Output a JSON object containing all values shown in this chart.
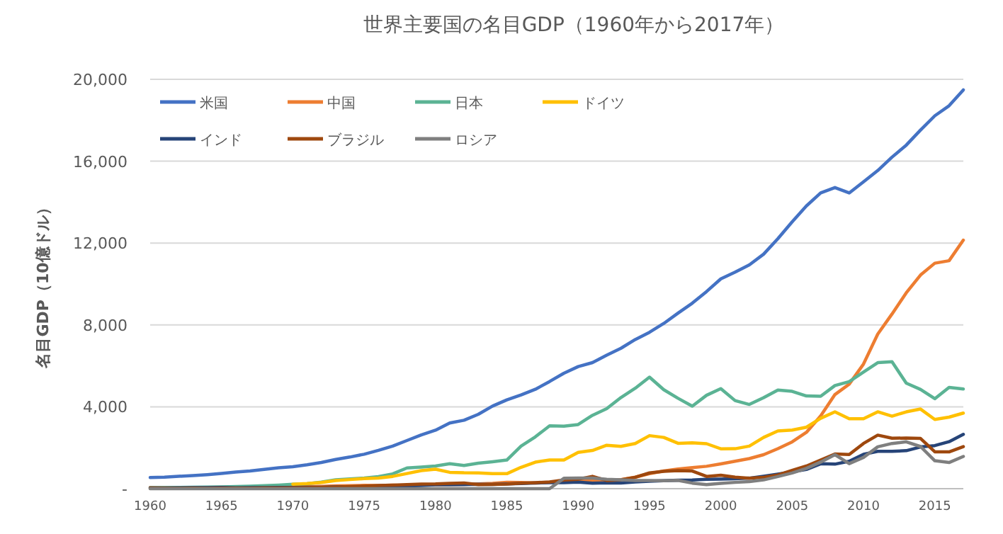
{
  "chart_data": {
    "type": "line",
    "title": "世界主要国の名目GDP（1960年から2017年）",
    "ylabel": "名目GDP（10億ドル）",
    "x": [
      1960,
      1961,
      1962,
      1963,
      1964,
      1965,
      1966,
      1967,
      1968,
      1969,
      1970,
      1971,
      1972,
      1973,
      1974,
      1975,
      1976,
      1977,
      1978,
      1979,
      1980,
      1981,
      1982,
      1983,
      1984,
      1985,
      1986,
      1987,
      1988,
      1989,
      1990,
      1991,
      1992,
      1993,
      1994,
      1995,
      1996,
      1997,
      1998,
      1999,
      2000,
      2001,
      2002,
      2003,
      2004,
      2005,
      2006,
      2007,
      2008,
      2009,
      2010,
      2011,
      2012,
      2013,
      2014,
      2015,
      2016,
      2017
    ],
    "xlim": [
      1960,
      2017
    ],
    "xticks": [
      1960,
      1965,
      1970,
      1975,
      1980,
      1985,
      1990,
      1995,
      2000,
      2005,
      2010,
      2015
    ],
    "ylim": [
      0,
      20000
    ],
    "yticks": [
      {
        "value": 0,
        "label": "-"
      },
      {
        "value": 4000,
        "label": "4,000"
      },
      {
        "value": 8000,
        "label": "8,000"
      },
      {
        "value": 12000,
        "label": "12,000"
      },
      {
        "value": 16000,
        "label": "16,000"
      },
      {
        "value": 20000,
        "label": "20,000"
      }
    ],
    "grid": "y",
    "legend": "top left",
    "series": [
      {
        "name": "米国",
        "color": "#4472c4",
        "values": [
          543,
          563,
          605,
          638,
          686,
          744,
          815,
          862,
          943,
          1020,
          1073,
          1165,
          1280,
          1425,
          1545,
          1684,
          1873,
          2082,
          2352,
          2627,
          2857,
          3207,
          3343,
          3634,
          4037,
          4339,
          4580,
          4855,
          5236,
          5642,
          5963,
          6158,
          6520,
          6859,
          7287,
          7640,
          8073,
          8578,
          9063,
          9631,
          10252,
          10582,
          10936,
          11458,
          12214,
          13037,
          13815,
          14452,
          14713,
          14449,
          14992,
          15543,
          16197,
          16785,
          17522,
          18219,
          18707,
          19485
        ]
      },
      {
        "name": "中国",
        "color": "#ed7d31",
        "values": [
          60,
          50,
          47,
          51,
          60,
          70,
          76,
          72,
          70,
          79,
          93,
          100,
          114,
          139,
          144,
          163,
          154,
          175,
          150,
          178,
          191,
          196,
          205,
          231,
          260,
          310,
          301,
          273,
          313,
          348,
          361,
          383,
          427,
          445,
          564,
          734,
          864,
          962,
          1029,
          1094,
          1211,
          1339,
          1471,
          1660,
          1955,
          2286,
          2752,
          3552,
          4598,
          5110,
          6087,
          7552,
          8532,
          9570,
          10439,
          11016,
          11138,
          12143
        ]
      },
      {
        "name": "日本",
        "color": "#5bb394",
        "values": [
          44,
          54,
          61,
          70,
          82,
          91,
          106,
          124,
          147,
          172,
          213,
          240,
          318,
          432,
          480,
          522,
          586,
          721,
          1013,
          1055,
          1105,
          1218,
          1134,
          1244,
          1318,
          1399,
          2079,
          2533,
          3072,
          3054,
          3133,
          3584,
          3909,
          4454,
          4907,
          5449,
          4834,
          4415,
          4033,
          4562,
          4888,
          4304,
          4115,
          4445,
          4815,
          4755,
          4530,
          4515,
          5038,
          5231,
          5700,
          6157,
          6203,
          5156,
          4850,
          4395,
          4950,
          4872
        ]
      },
      {
        "name": "ドイツ",
        "color": "#ffc000",
        "values": [
          null,
          null,
          null,
          null,
          null,
          null,
          null,
          null,
          null,
          null,
          216,
          250,
          300,
          398,
          446,
          490,
          520,
          601,
          740,
          882,
          950,
          800,
          777,
          771,
          733,
          732,
          1045,
          1297,
          1401,
          1398,
          1772,
          1868,
          2123,
          2069,
          2206,
          2591,
          2504,
          2219,
          2239,
          2197,
          1950,
          1951,
          2080,
          2506,
          2819,
          2862,
          3002,
          3440,
          3752,
          3418,
          3417,
          3758,
          3545,
          3753,
          3890,
          3381,
          3495,
          3693
        ]
      },
      {
        "name": "インド",
        "color": "#264478",
        "values": [
          37,
          39,
          42,
          49,
          56,
          59,
          46,
          50,
          53,
          58,
          62,
          67,
          71,
          85,
          99,
          98,
          103,
          122,
          138,
          153,
          186,
          193,
          201,
          219,
          212,
          232,
          249,
          279,
          296,
          296,
          321,
          270,
          288,
          279,
          327,
          360,
          392,
          415,
          421,
          458,
          468,
          485,
          515,
          607,
          709,
          820,
          940,
          1217,
          1199,
          1342,
          1676,
          1823,
          1828,
          1857,
          2039,
          2104,
          2295,
          2653
        ]
      },
      {
        "name": "ブラジル",
        "color": "#9e480e",
        "values": [
          15,
          15,
          20,
          23,
          21,
          22,
          27,
          30,
          33,
          37,
          42,
          49,
          58,
          80,
          105,
          124,
          153,
          177,
          201,
          225,
          235,
          264,
          281,
          203,
          209,
          223,
          268,
          294,
          330,
          426,
          462,
          602,
          400,
          437,
          558,
          770,
          850,
          884,
          864,
          599,
          655,
          559,
          508,
          558,
          669,
          892,
          1108,
          1397,
          1696,
          1667,
          2209,
          2616,
          2465,
          2473,
          2456,
          1802,
          1796,
          2054
        ]
      },
      {
        "name": "ロシア",
        "color": "#7f7f7f",
        "values": [
          0,
          0,
          0,
          0,
          0,
          0,
          0,
          0,
          0,
          0,
          0,
          0,
          0,
          0,
          0,
          0,
          0,
          0,
          0,
          0,
          0,
          0,
          0,
          0,
          0,
          0,
          0,
          0,
          0,
          507,
          517,
          518,
          460,
          435,
          395,
          396,
          392,
          405,
          271,
          196,
          260,
          307,
          345,
          430,
          591,
          764,
          990,
          1300,
          1661,
          1223,
          1525,
          2046,
          2208,
          2292,
          2059,
          1363,
          1277,
          1575
        ]
      }
    ]
  }
}
